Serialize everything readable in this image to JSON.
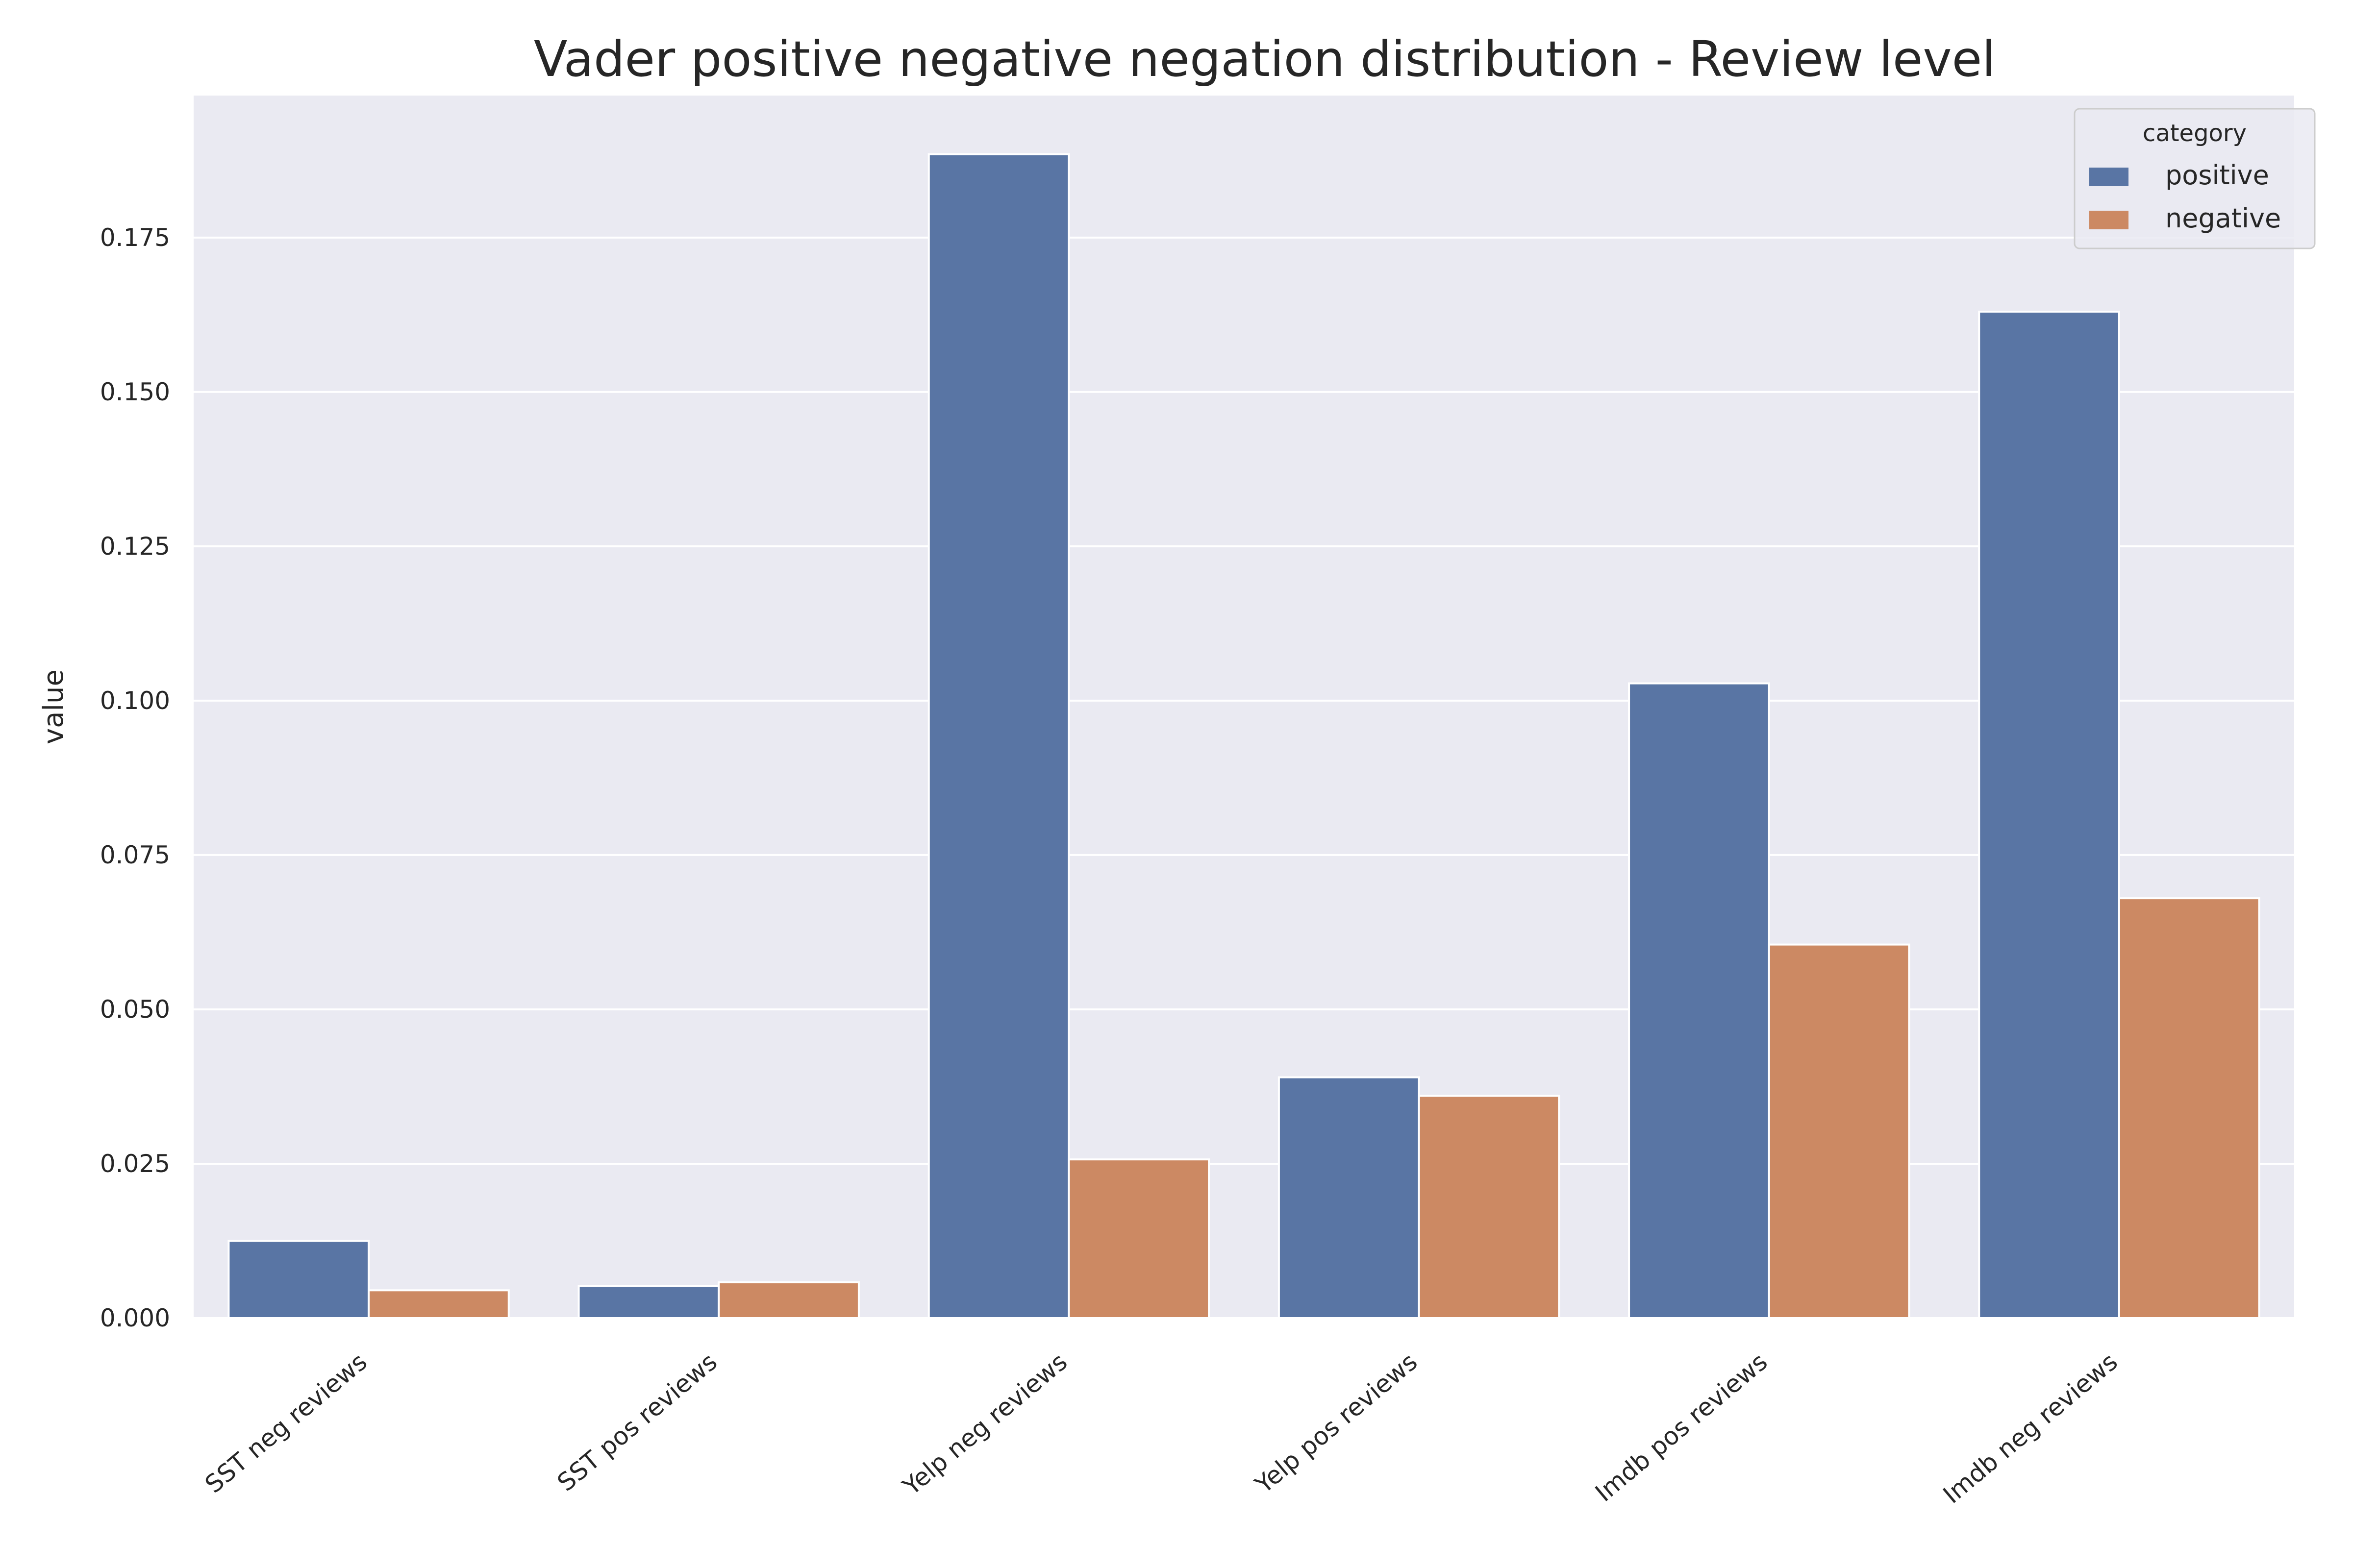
{
  "chart_data": {
    "type": "bar",
    "title": "Vader positive negative negation distribution - Review level",
    "xlabel": "",
    "ylabel": "value",
    "categories": [
      "SST neg reviews",
      "SST pos reviews",
      "Yelp neg reviews",
      "Yelp pos reviews",
      "Imdb pos reviews",
      "Imdb neg reviews"
    ],
    "series": [
      {
        "name": "positive",
        "color": "#5975a4",
        "values": [
          0.0125,
          0.0052,
          0.1885,
          0.039,
          0.1028,
          0.163
        ]
      },
      {
        "name": "negative",
        "color": "#cc8963",
        "values": [
          0.0045,
          0.0058,
          0.0257,
          0.036,
          0.0605,
          0.068
        ]
      }
    ],
    "ylim": [
      0,
      0.198
    ],
    "yticks": [
      "0.000",
      "0.025",
      "0.050",
      "0.075",
      "0.100",
      "0.125",
      "0.150",
      "0.175"
    ],
    "legend_title": "category",
    "legend_position": "top-right",
    "grid": true,
    "background_color": "#eaeaf2"
  }
}
